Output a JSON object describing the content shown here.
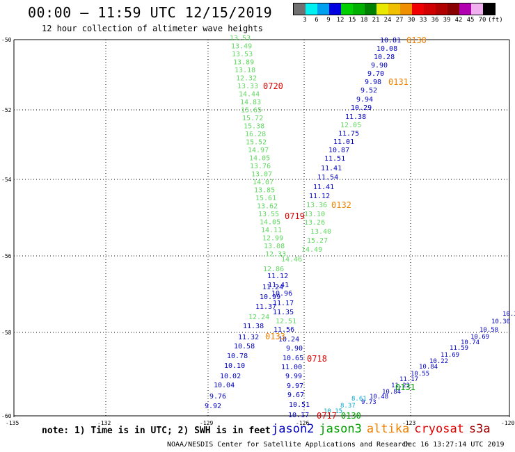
{
  "header": {
    "title": "00:00 – 11:59 UTC 12/15/2019",
    "subtitle": "12 hour collection of altimeter wave heights"
  },
  "legend": {
    "colors": [
      "#707070",
      "#00f0f0",
      "#00a0f0",
      "#0000e0",
      "#00d000",
      "#00b000",
      "#008000",
      "#e8e800",
      "#f0c000",
      "#f09000",
      "#f00000",
      "#d00000",
      "#b00000",
      "#880000",
      "#b000b0",
      "#f0b0f0",
      "#000000"
    ],
    "labels": [
      "3",
      "6",
      "9",
      "12",
      "15",
      "18",
      "21",
      "24",
      "27",
      "30",
      "33",
      "36",
      "39",
      "42",
      "45",
      "70"
    ],
    "unit": "(ft)"
  },
  "axes": {
    "lat_labels": [
      "-50",
      "-52",
      "-54",
      "-56",
      "-58",
      "-60"
    ],
    "lon_labels": [
      "-135",
      "-132",
      "-129",
      "-126",
      "-123",
      "-120"
    ]
  },
  "colors": {
    "jason2": "#0000c0",
    "jason3": "#00a000",
    "altika": "#f08000",
    "cryosat": "#e00000",
    "s3a": "#a00000",
    "light_green": "#60d860",
    "cyan": "#00a8d0"
  },
  "wave_labels": {
    "track_green_left": [
      "13.53",
      "13.49",
      "13.53",
      "13.89",
      "13.18",
      "12.32",
      "13.33",
      "14.44",
      "14.83",
      "15.65",
      "15.72",
      "15.38",
      "16.28",
      "15.52",
      "14.97",
      "14.05",
      "13.76",
      "13.07",
      "14.07",
      "13.85",
      "15.61",
      "13.62",
      "13.55",
      "14.05",
      "14.11",
      "12.99",
      "13.08",
      "12.33"
    ],
    "track_green_mid": [
      "12.05",
      "13.36",
      "13.10",
      "13.26",
      "13.40",
      "15.27",
      "14.49",
      "14.46",
      "12.86",
      "12.51"
    ],
    "track_blue_upper": [
      "10.81",
      "10.08",
      "10.28",
      "9.90",
      "9.70",
      "9.98",
      "9.52",
      "9.94",
      "10.29",
      "11.38",
      "11.75",
      "11.01",
      "10.87",
      "11.51",
      "11.41",
      "11.54",
      "11.41",
      "11.12"
    ],
    "track_blue_mid": [
      "11.12",
      "11.41",
      "10.96",
      "11.17",
      "11.35",
      "11.56",
      "10.24",
      "9.90",
      "10.65",
      "11.00",
      "9.99",
      "9.97",
      "9.67",
      "10.51",
      "10.17"
    ],
    "track_blue_left": [
      "11.24",
      "10.99",
      "11.37",
      "11.38",
      "11.32",
      "10.58",
      "10.78",
      "10.10",
      "10.02",
      "10.04",
      "9.76",
      "9.92"
    ],
    "track_green_left2": [
      "12.24"
    ],
    "track_blue_right": [
      "10.3",
      "10.30",
      "10.58",
      "10.69",
      "10.74",
      "11.59",
      "11.69",
      "10.22",
      "10.84",
      "10.55",
      "11.17",
      "11.22",
      "10.84",
      "10.48",
      "9.73"
    ],
    "track_cyan": [
      "8.61",
      "8.37",
      "10.15"
    ],
    "time_labels_orange": [
      "0130",
      "0131",
      "0132",
      "0133"
    ],
    "time_labels_red": [
      "0720",
      "0719",
      "0718",
      "0717"
    ],
    "time_labels_green": [
      "0131",
      "0130"
    ]
  },
  "footer": {
    "note": "note: 1) Time is in UTC; 2) SWH is in feet",
    "satellites": [
      {
        "name": "jason2",
        "color": "#0000c0"
      },
      {
        "name": "jason3",
        "color": "#00a000"
      },
      {
        "name": "altika",
        "color": "#f08000"
      },
      {
        "name": "cryosat",
        "color": "#e00000"
      },
      {
        "name": "s3a",
        "color": "#a00000"
      }
    ],
    "credit": "NOAA/NESDIS Center for Satellite Applications and Research",
    "timestamp": "Dec 16 13:27:14 UTC 2019"
  }
}
